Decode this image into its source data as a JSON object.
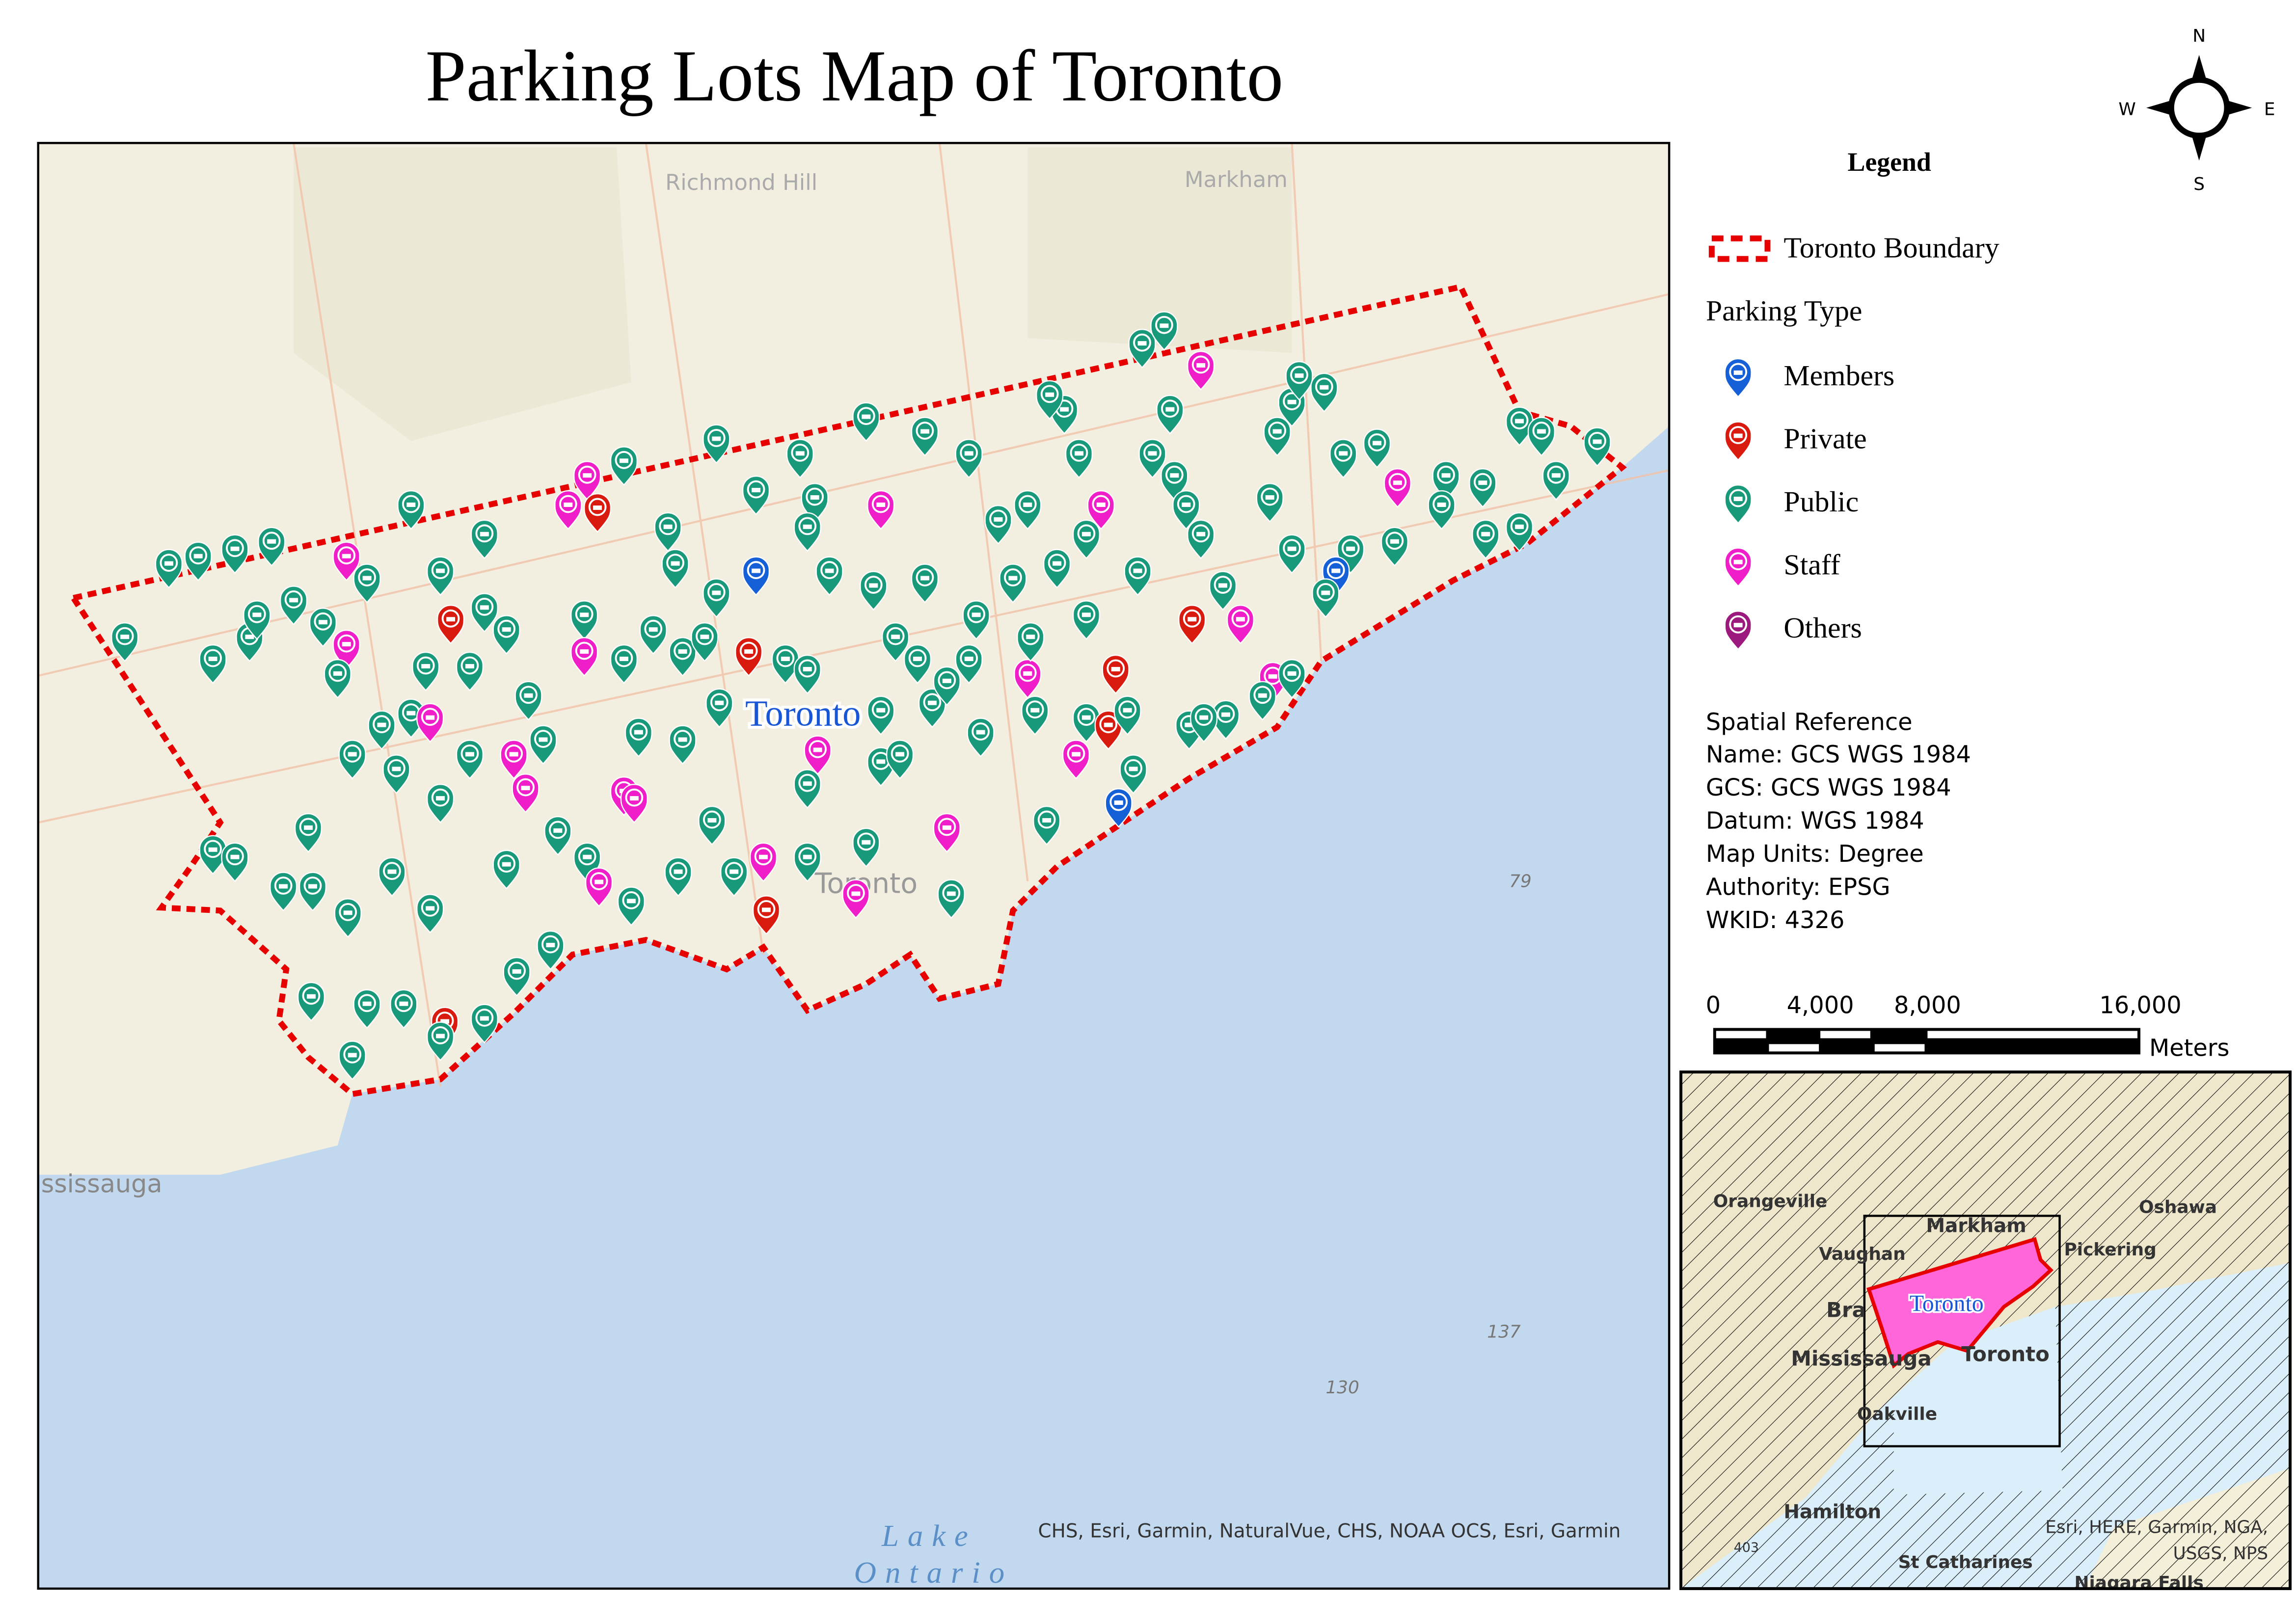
{
  "title": "Parking Lots Map of Toronto",
  "north_arrow": {
    "n": "N",
    "s": "S",
    "e": "E",
    "w": "W"
  },
  "map": {
    "labels": {
      "richmond_hill": "Richmond Hill",
      "markham": "Markham",
      "toronto_city": "Toronto",
      "toronto_base": "Toronto",
      "mississauga": "ssissauga",
      "lake1": "Lake",
      "lake2": "Ontario",
      "r79": "79",
      "r137": "137",
      "r130": "130"
    },
    "attribution": "CHS, Esri, Garmin, NaturalVue, CHS, NOAA OCS, Esri, Garmin",
    "colors": {
      "land": "#f3efe0",
      "water": "#c2d8ef",
      "boundary": "#e60000"
    }
  },
  "legend": {
    "title": "Legend",
    "boundary_label": "Toronto Boundary",
    "group_title": "Parking Type",
    "items": [
      {
        "label": "Members",
        "color": "#1560d6"
      },
      {
        "label": "Private",
        "color": "#d91a0e"
      },
      {
        "label": "Public",
        "color": "#17997a"
      },
      {
        "label": "Staff",
        "color": "#f01ec8"
      },
      {
        "label": "Others",
        "color": "#9c1a7e"
      }
    ]
  },
  "spatial_reference": {
    "title": "Spatial Reference",
    "lines": [
      "Name: GCS WGS 1984",
      "GCS: GCS WGS 1984",
      "Datum: WGS 1984",
      "Map Units: Degree",
      "Authority: EPSG",
      "WKID: 4326"
    ]
  },
  "scale_bar": {
    "ticks": [
      "0",
      "4,000",
      "8,000",
      "16,000"
    ],
    "unit": "Meters"
  },
  "inset": {
    "labels": {
      "orangeville": "Orangeville",
      "markham": "Markham",
      "vaughan": "Vaughan",
      "pickering": "Pickering",
      "oshawa": "Oshawa",
      "brampton": "Bra",
      "mississauga": "Mississauga",
      "toronto_base": "Toronto",
      "oakville": "Oakville",
      "hamilton": "Hamilton",
      "st_catharines": "St Catharines",
      "niagara": "Niagara Falls",
      "toronto": "Toronto",
      "highway": "403"
    },
    "attribution": [
      "Esri, HERE, Garmin, NGA,",
      "USGS, NPS"
    ]
  }
}
